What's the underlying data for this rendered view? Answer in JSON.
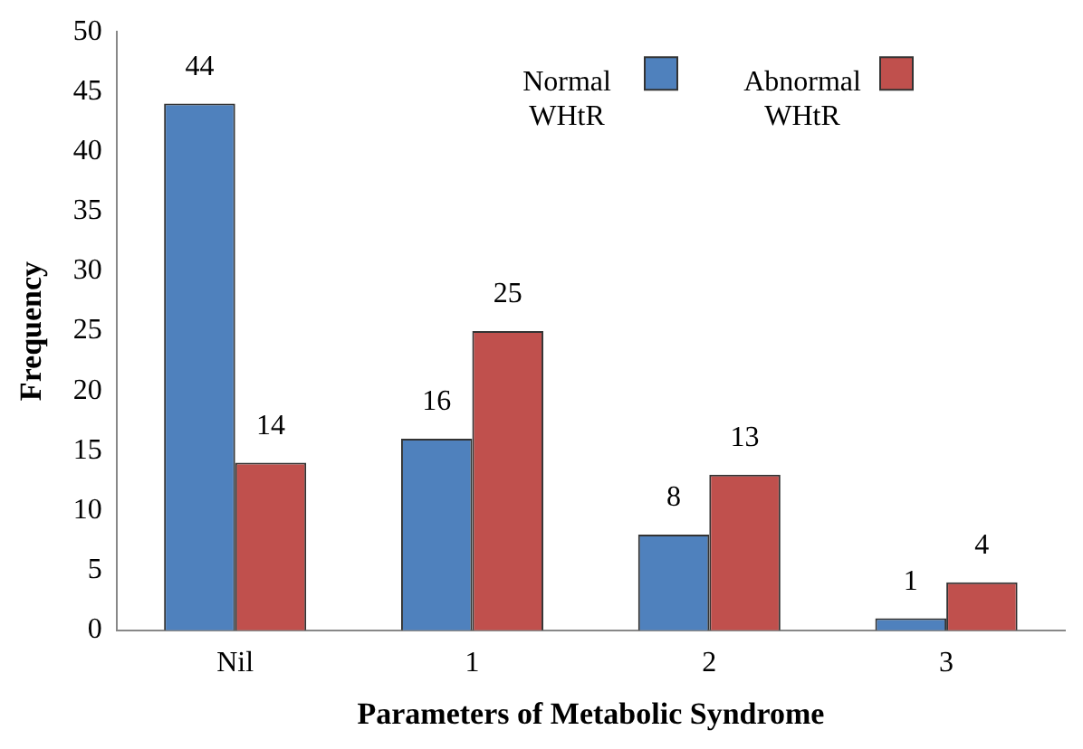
{
  "chart_data": {
    "type": "bar",
    "xlabel": "Parameters of Metabolic Syndrome",
    "ylabel": "Frequency",
    "categories": [
      "Nil",
      "1",
      "2",
      "3"
    ],
    "series": [
      {
        "name": "Normal WHtR",
        "color": "#4f81bd",
        "values": [
          44,
          16,
          8,
          1
        ]
      },
      {
        "name": "Abnormal WHtR",
        "color": "#c0504d",
        "values": [
          14,
          25,
          13,
          4
        ]
      }
    ],
    "ylim": [
      0,
      50
    ],
    "yticks": [
      0,
      5,
      10,
      15,
      20,
      25,
      30,
      35,
      40,
      45,
      50
    ],
    "grid": false,
    "legend": "top right",
    "data_labels": true
  }
}
